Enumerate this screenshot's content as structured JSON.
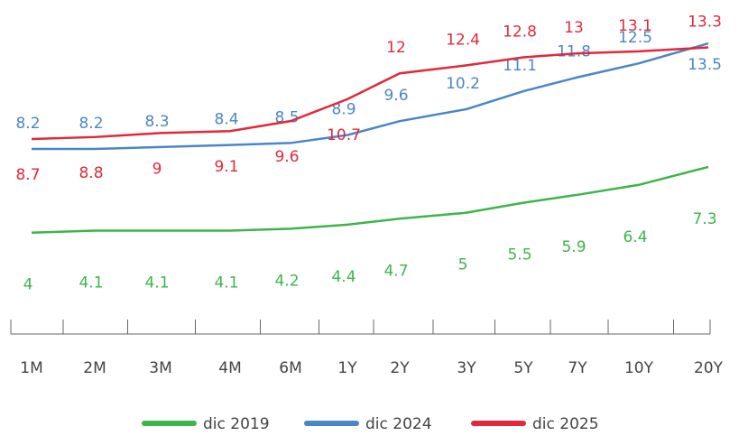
{
  "chart_data": {
    "type": "line",
    "categories": [
      "1M",
      "2M",
      "3M",
      "4M",
      "6M",
      "1Y",
      "2Y",
      "3Y",
      "5Y",
      "7Y",
      "10Y",
      "20Y"
    ],
    "series": [
      {
        "name": "dic 2019",
        "color": "#3db54a",
        "values": [
          4.0,
          4.1,
          4.1,
          4.1,
          4.2,
          4.4,
          4.7,
          5.0,
          5.5,
          5.9,
          6.4,
          7.3
        ]
      },
      {
        "name": "dic 2024",
        "color": "#4a86c8",
        "values": [
          8.2,
          8.2,
          8.3,
          8.4,
          8.5,
          8.9,
          9.6,
          10.2,
          11.1,
          11.8,
          12.5,
          13.5
        ]
      },
      {
        "name": "dic 2025",
        "color": "#e2283a",
        "values": [
          8.7,
          8.8,
          9.0,
          9.1,
          9.6,
          10.7,
          12.0,
          12.4,
          12.8,
          13.0,
          13.1,
          13.3
        ]
      }
    ],
    "ylim": [
      0,
      15
    ],
    "legend": "bottom"
  }
}
